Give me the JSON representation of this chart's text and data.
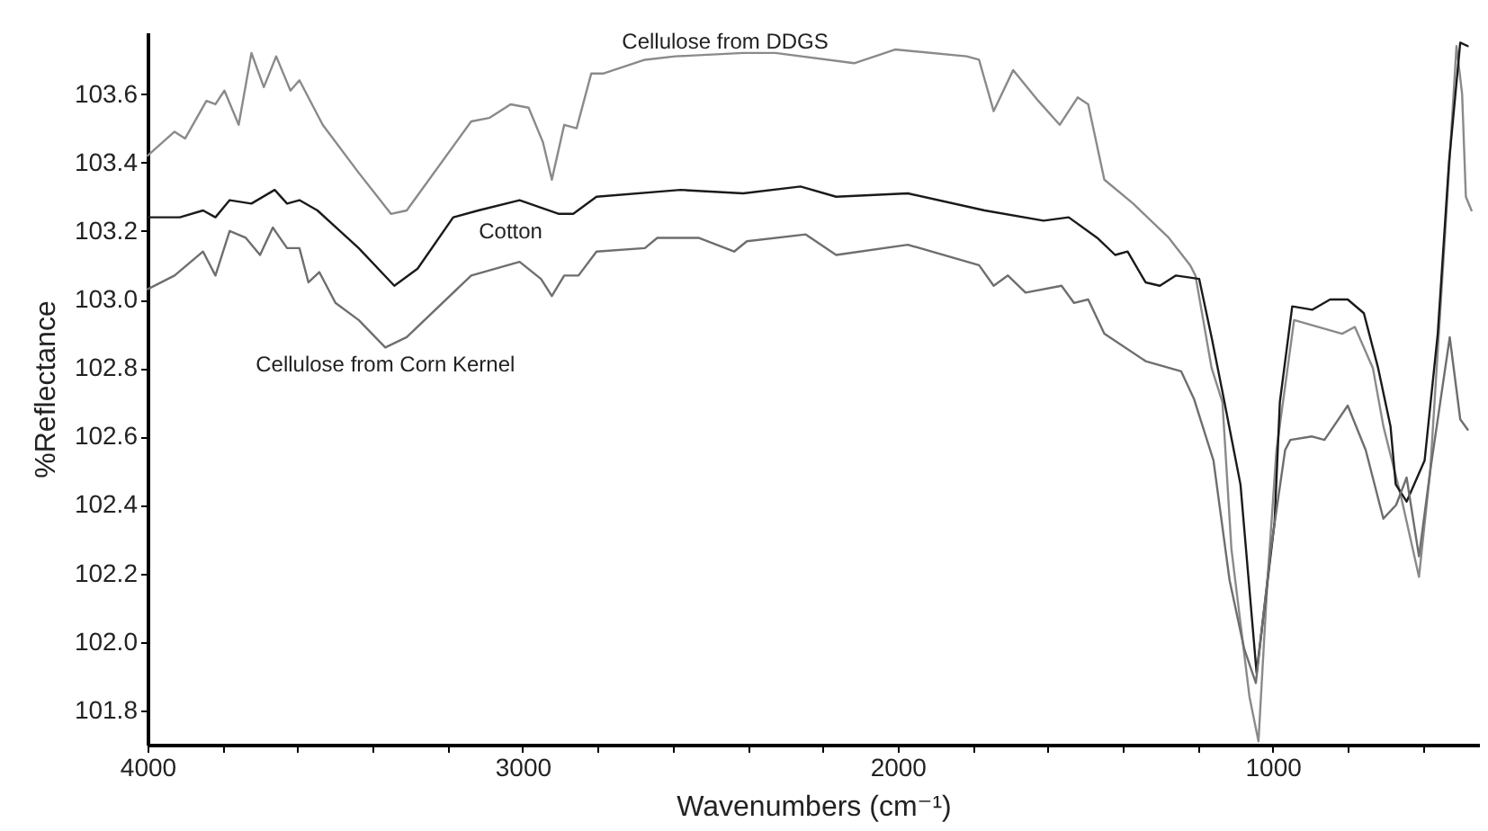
{
  "chart_data": {
    "type": "line",
    "xlabel": "Wavenumbers (cm⁻¹)",
    "ylabel": "%Reflectance",
    "xlim": [
      4000,
      450
    ],
    "ylim": [
      101.7,
      103.78
    ],
    "xticks": [
      4000,
      {
        "value": 3800,
        "label": null
      },
      {
        "value": 3600,
        "label": null
      },
      {
        "value": 3400,
        "label": null
      },
      {
        "value": 3200,
        "label": null
      },
      3000,
      {
        "value": 2800,
        "label": null
      },
      {
        "value": 2600,
        "label": null
      },
      {
        "value": 2400,
        "label": null
      },
      {
        "value": 2200,
        "label": null
      },
      2000,
      {
        "value": 1800,
        "label": null
      },
      {
        "value": 1600,
        "label": null
      },
      {
        "value": 1400,
        "label": null
      },
      {
        "value": 1200,
        "label": null
      },
      1000,
      {
        "value": 800,
        "label": null
      },
      {
        "value": 600,
        "label": null
      }
    ],
    "yticks": [
      {
        "value": 101.8,
        "label": "101.8"
      },
      {
        "value": 102.0,
        "label": "102.0"
      },
      {
        "value": 102.2,
        "label": "102.2"
      },
      {
        "value": 102.4,
        "label": "102.4"
      },
      {
        "value": 102.6,
        "label": "102.6"
      },
      {
        "value": 102.8,
        "label": "102.8"
      },
      {
        "value": 103.0,
        "label": "103.0"
      },
      {
        "value": 103.2,
        "label": "103.2"
      },
      {
        "value": 103.4,
        "label": "103.4"
      },
      {
        "value": 103.6,
        "label": "103.6"
      }
    ],
    "series": [
      {
        "name": "Cellulose from DDGS",
        "color": "#8a8a8a",
        "x": [
          4000,
          3928,
          3900,
          3843,
          3819,
          3795,
          3757,
          3723,
          3690,
          3657,
          3619,
          3595,
          3533,
          3437,
          3351,
          3309,
          3137,
          3089,
          3032,
          2984,
          2946,
          2922,
          2889,
          2856,
          2817,
          2784,
          2674,
          2593,
          2412,
          2326,
          2116,
          2007,
          1816,
          1783,
          1744,
          1692,
          1625,
          1568,
          1520,
          1492,
          1449,
          1372,
          1277,
          1220,
          1206,
          1163,
          1134,
          1110,
          1062,
          1038,
          1014,
          990,
          943,
          815,
          781,
          733,
          705,
          657,
          610,
          580,
          540,
          510,
          495,
          485,
          470
        ],
        "values": [
          103.42,
          103.49,
          103.47,
          103.58,
          103.57,
          103.61,
          103.51,
          103.72,
          103.62,
          103.71,
          103.61,
          103.64,
          103.51,
          103.37,
          103.25,
          103.26,
          103.52,
          103.53,
          103.57,
          103.56,
          103.46,
          103.35,
          103.51,
          103.5,
          103.66,
          103.66,
          103.7,
          103.71,
          103.72,
          103.72,
          103.69,
          103.73,
          103.71,
          103.7,
          103.55,
          103.67,
          103.58,
          103.51,
          103.59,
          103.57,
          103.35,
          103.28,
          103.18,
          103.1,
          103.07,
          102.8,
          102.7,
          102.27,
          101.84,
          101.71,
          102.18,
          102.56,
          102.94,
          102.9,
          102.92,
          102.8,
          102.63,
          102.42,
          102.19,
          102.5,
          103.2,
          103.74,
          103.6,
          103.3,
          103.26
        ]
      },
      {
        "name": "Cotton",
        "color": "#1a1a1a",
        "x": [
          4000,
          3914,
          3852,
          3819,
          3781,
          3723,
          3661,
          3628,
          3595,
          3547,
          3437,
          3342,
          3280,
          3185,
          3118,
          3008,
          2903,
          2865,
          2803,
          2579,
          2412,
          2259,
          2164,
          1973,
          1768,
          1611,
          1544,
          1468,
          1420,
          1387,
          1339,
          1301,
          1258,
          1196,
          1163,
          1134,
          1086,
          1043,
          995,
          981,
          948,
          895,
          847,
          800,
          757,
          719,
          686,
          672,
          643,
          595,
          560,
          530,
          500,
          480
        ],
        "values": [
          103.24,
          103.24,
          103.26,
          103.24,
          103.29,
          103.28,
          103.32,
          103.28,
          103.29,
          103.26,
          103.15,
          103.04,
          103.09,
          103.24,
          103.26,
          103.29,
          103.25,
          103.25,
          103.3,
          103.32,
          103.31,
          103.33,
          103.3,
          103.31,
          103.26,
          103.23,
          103.24,
          103.18,
          103.13,
          103.14,
          103.05,
          103.04,
          103.07,
          103.06,
          102.89,
          102.73,
          102.46,
          101.91,
          102.35,
          102.7,
          102.98,
          102.97,
          103.0,
          103.0,
          102.96,
          102.8,
          102.63,
          102.46,
          102.41,
          102.53,
          102.9,
          103.4,
          103.75,
          103.74
        ]
      },
      {
        "name": "Cellulose from Corn Kernel",
        "color": "#6e6e6e",
        "x": [
          4000,
          3928,
          3852,
          3819,
          3781,
          3738,
          3700,
          3666,
          3628,
          3595,
          3571,
          3542,
          3499,
          3437,
          3366,
          3309,
          3137,
          3008,
          2951,
          2922,
          2889,
          2851,
          2803,
          2674,
          2641,
          2531,
          2436,
          2402,
          2245,
          2164,
          1973,
          1783,
          1744,
          1706,
          1659,
          1563,
          1530,
          1492,
          1449,
          1339,
          1244,
          1210,
          1158,
          1115,
          1076,
          1045,
          1005,
          967,
          953,
          895,
          862,
          800,
          752,
          705,
          671,
          643,
          610,
          580,
          528,
          500,
          480
        ],
        "values": [
          103.03,
          103.07,
          103.14,
          103.07,
          103.2,
          103.18,
          103.13,
          103.21,
          103.15,
          103.15,
          103.05,
          103.08,
          102.99,
          102.94,
          102.86,
          102.89,
          103.07,
          103.11,
          103.06,
          103.01,
          103.07,
          103.07,
          103.14,
          103.15,
          103.18,
          103.18,
          103.14,
          103.17,
          103.19,
          103.13,
          103.16,
          103.1,
          103.04,
          103.07,
          103.02,
          103.04,
          102.99,
          103.0,
          102.9,
          102.82,
          102.79,
          102.71,
          102.53,
          102.18,
          101.98,
          101.88,
          102.27,
          102.56,
          102.59,
          102.6,
          102.59,
          102.69,
          102.56,
          102.36,
          102.4,
          102.48,
          102.25,
          102.5,
          102.89,
          102.65,
          102.62
        ]
      }
    ]
  }
}
